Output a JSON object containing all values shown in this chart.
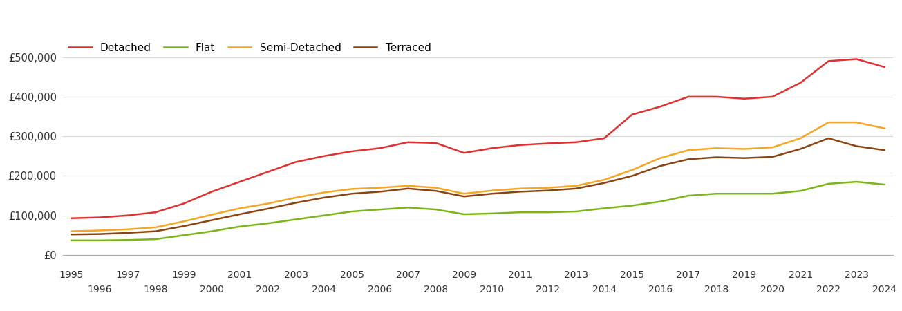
{
  "series": {
    "Detached": {
      "color": "#e03030",
      "years": [
        1995,
        1996,
        1997,
        1998,
        1999,
        2000,
        2001,
        2002,
        2003,
        2004,
        2005,
        2006,
        2007,
        2008,
        2009,
        2010,
        2011,
        2012,
        2013,
        2014,
        2015,
        2016,
        2017,
        2018,
        2019,
        2020,
        2021,
        2022,
        2023,
        2024
      ],
      "values": [
        93000,
        95000,
        100000,
        108000,
        130000,
        160000,
        185000,
        210000,
        235000,
        250000,
        262000,
        270000,
        285000,
        283000,
        258000,
        270000,
        278000,
        282000,
        285000,
        295000,
        355000,
        375000,
        400000,
        400000,
        395000,
        400000,
        435000,
        490000,
        495000,
        475000
      ]
    },
    "Flat": {
      "color": "#7cb518",
      "years": [
        1995,
        1996,
        1997,
        1998,
        1999,
        2000,
        2001,
        2002,
        2003,
        2004,
        2005,
        2006,
        2007,
        2008,
        2009,
        2010,
        2011,
        2012,
        2013,
        2014,
        2015,
        2016,
        2017,
        2018,
        2019,
        2020,
        2021,
        2022,
        2023,
        2024
      ],
      "values": [
        37000,
        37000,
        38000,
        40000,
        50000,
        60000,
        72000,
        80000,
        90000,
        100000,
        110000,
        115000,
        120000,
        115000,
        103000,
        105000,
        108000,
        108000,
        110000,
        118000,
        125000,
        135000,
        150000,
        155000,
        155000,
        155000,
        162000,
        180000,
        185000,
        178000
      ]
    },
    "Semi-Detached": {
      "color": "#f5a623",
      "years": [
        1995,
        1996,
        1997,
        1998,
        1999,
        2000,
        2001,
        2002,
        2003,
        2004,
        2005,
        2006,
        2007,
        2008,
        2009,
        2010,
        2011,
        2012,
        2013,
        2014,
        2015,
        2016,
        2017,
        2018,
        2019,
        2020,
        2021,
        2022,
        2023,
        2024
      ],
      "values": [
        60000,
        62000,
        65000,
        70000,
        85000,
        102000,
        118000,
        130000,
        145000,
        158000,
        167000,
        170000,
        175000,
        170000,
        155000,
        163000,
        168000,
        170000,
        175000,
        190000,
        215000,
        245000,
        265000,
        270000,
        268000,
        272000,
        295000,
        335000,
        335000,
        320000
      ]
    },
    "Terraced": {
      "color": "#8B4513",
      "years": [
        1995,
        1996,
        1997,
        1998,
        1999,
        2000,
        2001,
        2002,
        2003,
        2004,
        2005,
        2006,
        2007,
        2008,
        2009,
        2010,
        2011,
        2012,
        2013,
        2014,
        2015,
        2016,
        2017,
        2018,
        2019,
        2020,
        2021,
        2022,
        2023,
        2024
      ],
      "values": [
        52000,
        53000,
        56000,
        60000,
        73000,
        88000,
        103000,
        117000,
        132000,
        145000,
        155000,
        160000,
        168000,
        162000,
        148000,
        155000,
        160000,
        163000,
        168000,
        182000,
        200000,
        225000,
        242000,
        247000,
        245000,
        248000,
        268000,
        295000,
        275000,
        265000
      ]
    }
  },
  "ylim": [
    0,
    550000
  ],
  "yticks": [
    0,
    100000,
    200000,
    300000,
    400000,
    500000
  ],
  "ytick_labels": [
    "£0",
    "£100,000",
    "£200,000",
    "£300,000",
    "£400,000",
    "£500,000"
  ],
  "xlim_min": 1994.7,
  "xlim_max": 2024.3,
  "legend_order": [
    "Detached",
    "Flat",
    "Semi-Detached",
    "Terraced"
  ],
  "line_width": 1.8,
  "background_color": "#ffffff",
  "grid_color": "#d8d8d8"
}
